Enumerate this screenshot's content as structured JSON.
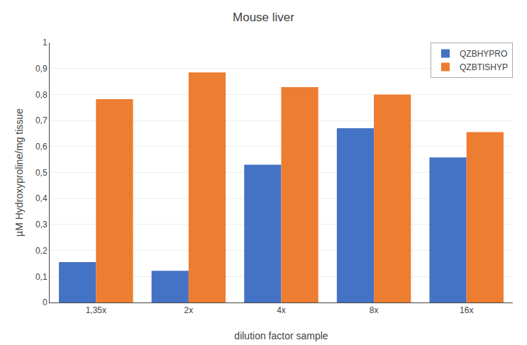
{
  "chart_data": {
    "type": "bar",
    "title": "Mouse liver",
    "xlabel": "dilution factor sample",
    "ylabel": "µM Hydroxyproline/mg tissue",
    "categories": [
      "1,35x",
      "2x",
      "4x",
      "8x",
      "16x"
    ],
    "series": [
      {
        "name": "QZBHYPRO",
        "color": "#4472C4",
        "values": [
          0.155,
          0.122,
          0.53,
          0.67,
          0.558
        ]
      },
      {
        "name": "QZBTISHYP",
        "color": "#ED7D31",
        "values": [
          0.782,
          0.885,
          0.828,
          0.8,
          0.655
        ]
      }
    ],
    "ylim": [
      0,
      1.0
    ],
    "yticks": [
      0,
      {
        "value": 0.1,
        "label": "0,1"
      },
      {
        "value": 0.2,
        "label": "0,2"
      },
      {
        "value": 0.3,
        "label": "0,3"
      },
      {
        "value": 0.4,
        "label": "0,4"
      },
      {
        "value": 0.5,
        "label": "0,5"
      },
      {
        "value": 0.6,
        "label": "0,6"
      },
      {
        "value": 0.7,
        "label": "0,7"
      },
      {
        "value": 0.8,
        "label": "0,8"
      },
      {
        "value": 0.9,
        "label": "0,9"
      },
      1
    ],
    "grid": true,
    "legend": "upper right"
  }
}
